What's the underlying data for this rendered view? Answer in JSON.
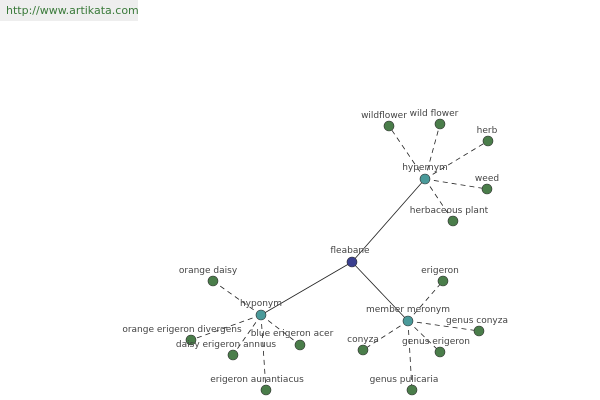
{
  "url": "http://www.artikata.com",
  "center": "fleabane",
  "groups": [
    {
      "label": "hypernym",
      "children": [
        "wildflower",
        "wild flower",
        "herb",
        "weed",
        "herbaceous plant"
      ]
    },
    {
      "label": "member meronym",
      "children": [
        "erigeron",
        "genus conyza",
        "genus erigeron",
        "genus pulicaria",
        "conyza"
      ]
    },
    {
      "label": "hyponym",
      "children": [
        "orange daisy",
        "orange erigeron divergens",
        "daisy erigeron annuus",
        "blue erigeron acer",
        "erigeron aurantiacus"
      ]
    }
  ]
}
